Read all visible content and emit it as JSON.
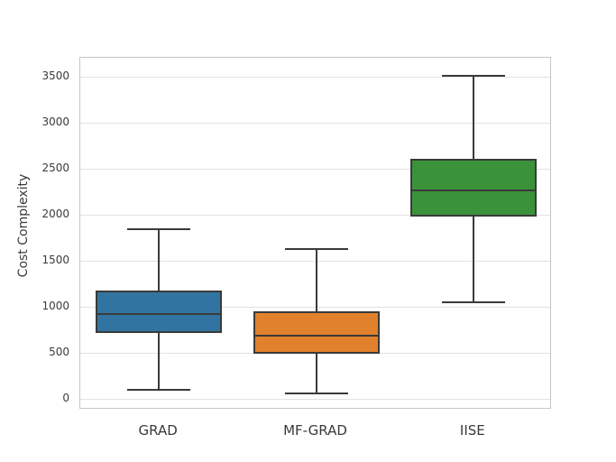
{
  "chart_data": {
    "type": "boxplot",
    "title": "",
    "xlabel": "",
    "ylabel": "Cost Complexity",
    "categories": [
      "GRAD",
      "MF-GRAD",
      "IISE"
    ],
    "y_ticks": [
      0,
      500,
      1000,
      1500,
      2000,
      2500,
      3000,
      3500
    ],
    "ylim": [
      -120,
      3710
    ],
    "grid": "horizontal-only",
    "legend": "none",
    "series": [
      {
        "name": "GRAD",
        "color": "#3274a1",
        "whisker_low": 100,
        "q1": 715,
        "median": 925,
        "q3": 1180,
        "whisker_high": 1840
      },
      {
        "name": "MF-GRAD",
        "color": "#e1812c",
        "whisker_low": 60,
        "q1": 490,
        "median": 690,
        "q3": 955,
        "whisker_high": 1630
      },
      {
        "name": "IISE",
        "color": "#3a923a",
        "whisker_low": 1050,
        "q1": 1985,
        "median": 2270,
        "q3": 2610,
        "whisker_high": 3515
      }
    ],
    "style": {
      "edge_color": "#3a3a3a",
      "grid_color": "#e2e2e2",
      "spine_color": "#c6c6c6",
      "text_color": "#3a3a3a",
      "background": "#ffffff"
    }
  }
}
